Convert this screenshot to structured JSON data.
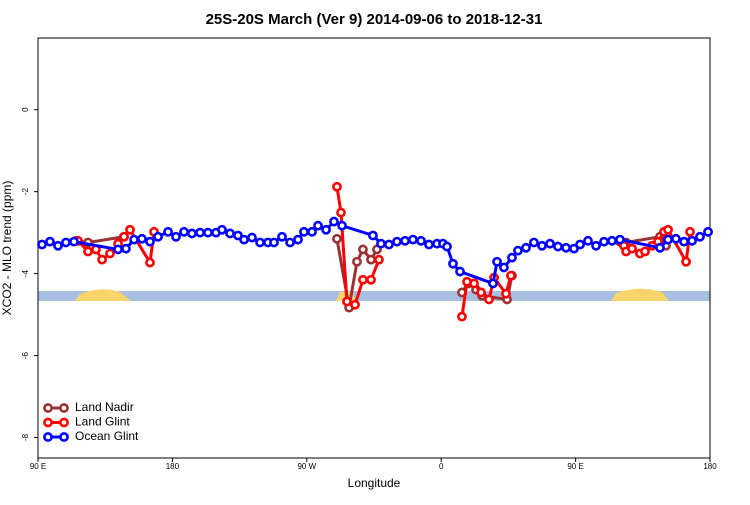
{
  "chart_data": {
    "type": "line",
    "title": "25S-20S March (Ver 9)   2014-09-06 to 2018-12-31",
    "xlabel": "Longitude",
    "ylabel": "XCO2 - MLO trend (ppm)",
    "xlim": [
      90,
      540
    ],
    "ylim": [
      -8.5,
      1.75
    ],
    "xticks": [
      {
        "value": 90,
        "label": "90 E"
      },
      {
        "value": 180,
        "label": "180"
      },
      {
        "value": 270,
        "label": "90 W"
      },
      {
        "value": 360,
        "label": "0"
      },
      {
        "value": 450,
        "label": "90 E"
      },
      {
        "value": 540,
        "label": "180"
      }
    ],
    "yticks": [
      0,
      -2,
      -4,
      -6,
      -8
    ],
    "legend": "bottom-left",
    "series": [
      {
        "name": "Land Nadir",
        "color": "#993333",
        "x": [
          115.4,
          123.5,
          147.6,
          null,
          290.2,
          298.3,
          303.6,
          307.6,
          313.0,
          317.0,
          null,
          373.9,
          378.0,
          383.3,
          387.3,
          404.1,
          407.4,
          null,
          479.7,
          483.8,
          506.5,
          510.5
        ],
        "values": [
          -3.2,
          -3.24,
          -3.1,
          null,
          -3.15,
          -4.83,
          -3.71,
          -3.41,
          -3.66,
          -3.41,
          null,
          -4.46,
          -4.24,
          -4.39,
          -4.54,
          -4.63,
          -4.05,
          null,
          -3.22,
          -3.24,
          -3.1,
          -3.32
        ]
      },
      {
        "name": "Land Glint",
        "color": "#ff0000",
        "x": [
          116.8,
          123.5,
          128.8,
          132.9,
          138.2,
          143.6,
          147.6,
          151.6,
          165.0,
          167.7,
          null,
          290.2,
          292.9,
          296.9,
          302.3,
          307.6,
          313.0,
          318.3,
          null,
          373.9,
          377.3,
          382.0,
          386.7,
          392.0,
          395.4,
          403.4,
          406.7,
          null,
          482.4,
          483.8,
          487.8,
          493.1,
          496.5,
          501.2,
          505.2,
          509.2,
          511.9,
          524.0,
          526.6
        ],
        "values": [
          -3.2,
          -3.46,
          -3.41,
          -3.66,
          -3.51,
          -3.27,
          -3.1,
          -2.93,
          -3.73,
          -2.98,
          null,
          -1.88,
          -2.51,
          -4.68,
          -4.76,
          -4.15,
          -4.15,
          -3.66,
          null,
          -5.05,
          -4.2,
          -4.24,
          -4.46,
          -4.63,
          -4.1,
          -4.49,
          -4.05,
          null,
          -3.32,
          -3.46,
          -3.39,
          -3.51,
          -3.46,
          -3.32,
          -3.22,
          -2.98,
          -2.93,
          -3.71,
          -2.98
        ]
      },
      {
        "name": "Ocean Glint",
        "color": "#0000ff",
        "x": [
          92.7,
          98.0,
          103.4,
          108.7,
          114.1,
          143.6,
          148.9,
          154.3,
          159.6,
          165.0,
          170.4,
          177.1,
          182.4,
          187.8,
          193.1,
          198.5,
          203.8,
          209.2,
          213.2,
          218.6,
          223.9,
          228.0,
          233.3,
          238.7,
          244.0,
          248.0,
          253.4,
          258.8,
          264.1,
          268.1,
          273.5,
          277.5,
          282.9,
          288.2,
          293.6,
          314.3,
          319.7,
          325.0,
          330.4,
          335.8,
          341.1,
          346.5,
          351.8,
          357.2,
          361.2,
          363.9,
          367.9,
          372.6,
          394.7,
          397.4,
          402.0,
          407.4,
          411.4,
          416.8,
          422.1,
          427.5,
          432.9,
          438.2,
          443.6,
          448.9,
          453.0,
          458.3,
          463.7,
          469.0,
          474.4,
          479.7,
          506.5,
          511.9,
          517.2,
          522.6,
          528.0,
          533.3,
          538.7
        ],
        "values": [
          -3.29,
          -3.22,
          -3.32,
          -3.24,
          -3.22,
          -3.41,
          -3.39,
          -3.17,
          -3.15,
          -3.22,
          -3.1,
          -2.98,
          -3.1,
          -2.98,
          -3.02,
          -3.0,
          -3.0,
          -3.0,
          -2.93,
          -3.02,
          -3.07,
          -3.17,
          -3.12,
          -3.24,
          -3.24,
          -3.24,
          -3.1,
          -3.24,
          -3.17,
          -2.98,
          -2.98,
          -2.83,
          -2.93,
          -2.73,
          -2.83,
          -3.07,
          -3.27,
          -3.29,
          -3.22,
          -3.2,
          -3.17,
          -3.2,
          -3.29,
          -3.27,
          -3.27,
          -3.34,
          -3.76,
          -3.95,
          -4.24,
          -3.71,
          -3.85,
          -3.61,
          -3.44,
          -3.37,
          -3.24,
          -3.32,
          -3.27,
          -3.34,
          -3.37,
          -3.39,
          -3.29,
          -3.2,
          -3.32,
          -3.22,
          -3.2,
          -3.17,
          -3.37,
          -3.17,
          -3.15,
          -3.22,
          -3.2,
          -3.1,
          -2.98
        ]
      }
    ]
  }
}
